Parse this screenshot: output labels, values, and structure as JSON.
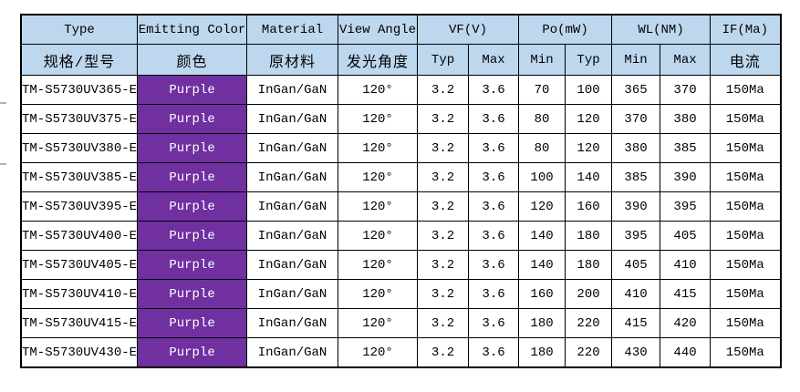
{
  "colors": {
    "header_bg": "#bdd7ee",
    "purple_bg": "#7030a0",
    "purple_text": "#ffffff",
    "border": "#000000",
    "text": "#000000",
    "row_bg": "#ffffff"
  },
  "table": {
    "columns": [
      "type",
      "color",
      "material",
      "view_angle",
      "vf_typ",
      "vf_max",
      "po_min",
      "po_typ",
      "wl_min",
      "wl_max",
      "if_current"
    ],
    "header_row1": {
      "type": "Type",
      "emitting_color": "Emitting Color",
      "material": "Material",
      "view_angle": "View Angle",
      "vf": "VF(V)",
      "po": "Po(mW)",
      "wl": "WL(NM)",
      "if": "IF(Ma)"
    },
    "header_row2": {
      "type_cn": "规格/型号",
      "color_cn": "颜色",
      "material_cn": "原材料",
      "view_angle_cn": "发光角度",
      "vf_typ": "Typ",
      "vf_max": "Max",
      "po_min": "Min",
      "po_typ": "Typ",
      "wl_min": "Min",
      "wl_max": "Max",
      "if_cn": "电流"
    },
    "rows": [
      {
        "type": "TM-S5730UV365-E",
        "color": "Purple",
        "material": "InGan/GaN",
        "view_angle": "120°",
        "vf_typ": "3.2",
        "vf_max": "3.6",
        "po_min": "70",
        "po_typ": "100",
        "wl_min": "365",
        "wl_max": "370",
        "if_current": "150Ma"
      },
      {
        "type": "TM-S5730UV375-E",
        "color": "Purple",
        "material": "InGan/GaN",
        "view_angle": "120°",
        "vf_typ": "3.2",
        "vf_max": "3.6",
        "po_min": "80",
        "po_typ": "120",
        "wl_min": "370",
        "wl_max": "380",
        "if_current": "150Ma"
      },
      {
        "type": "TM-S5730UV380-E",
        "color": "Purple",
        "material": "InGan/GaN",
        "view_angle": "120°",
        "vf_typ": "3.2",
        "vf_max": "3.6",
        "po_min": "80",
        "po_typ": "120",
        "wl_min": "380",
        "wl_max": "385",
        "if_current": "150Ma"
      },
      {
        "type": "TM-S5730UV385-E",
        "color": "Purple",
        "material": "InGan/GaN",
        "view_angle": "120°",
        "vf_typ": "3.2",
        "vf_max": "3.6",
        "po_min": "100",
        "po_typ": "140",
        "wl_min": "385",
        "wl_max": "390",
        "if_current": "150Ma"
      },
      {
        "type": "TM-S5730UV395-E",
        "color": "Purple",
        "material": "InGan/GaN",
        "view_angle": "120°",
        "vf_typ": "3.2",
        "vf_max": "3.6",
        "po_min": "120",
        "po_typ": "160",
        "wl_min": "390",
        "wl_max": "395",
        "if_current": "150Ma"
      },
      {
        "type": "TM-S5730UV400-E",
        "color": "Purple",
        "material": "InGan/GaN",
        "view_angle": "120°",
        "vf_typ": "3.2",
        "vf_max": "3.6",
        "po_min": "140",
        "po_typ": "180",
        "wl_min": "395",
        "wl_max": "405",
        "if_current": "150Ma"
      },
      {
        "type": "TM-S5730UV405-E",
        "color": "Purple",
        "material": "InGan/GaN",
        "view_angle": "120°",
        "vf_typ": "3.2",
        "vf_max": "3.6",
        "po_min": "140",
        "po_typ": "180",
        "wl_min": "405",
        "wl_max": "410",
        "if_current": "150Ma"
      },
      {
        "type": "TM-S5730UV410-E",
        "color": "Purple",
        "material": "InGan/GaN",
        "view_angle": "120°",
        "vf_typ": "3.2",
        "vf_max": "3.6",
        "po_min": "160",
        "po_typ": "200",
        "wl_min": "410",
        "wl_max": "415",
        "if_current": "150Ma"
      },
      {
        "type": "TM-S5730UV415-E",
        "color": "Purple",
        "material": "InGan/GaN",
        "view_angle": "120°",
        "vf_typ": "3.2",
        "vf_max": "3.6",
        "po_min": "180",
        "po_typ": "220",
        "wl_min": "415",
        "wl_max": "420",
        "if_current": "150Ma"
      },
      {
        "type": "TM-S5730UV430-E",
        "color": "Purple",
        "material": "InGan/GaN",
        "view_angle": "120°",
        "vf_typ": "3.2",
        "vf_max": "3.6",
        "po_min": "180",
        "po_typ": "220",
        "wl_min": "430",
        "wl_max": "440",
        "if_current": "150Ma"
      }
    ]
  }
}
